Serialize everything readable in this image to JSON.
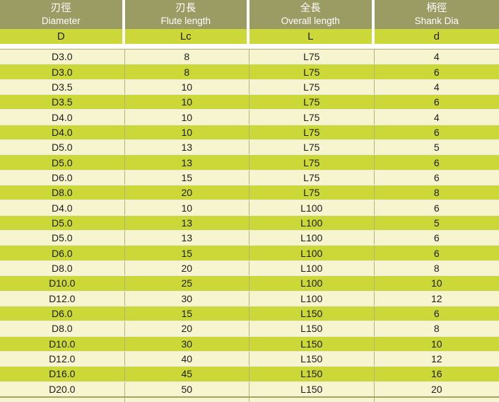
{
  "table": {
    "columns": [
      {
        "zh": "刃徑",
        "en": "Diameter",
        "symbol": "D"
      },
      {
        "zh": "刃長",
        "en": "Flute length",
        "symbol": "Lc"
      },
      {
        "zh": "全長",
        "en": "Overall length",
        "symbol": "L"
      },
      {
        "zh": "柄徑",
        "en": "Shank Dia",
        "symbol": "d"
      }
    ],
    "rows": [
      [
        "D3.0",
        "8",
        "L75",
        "4"
      ],
      [
        "D3.0",
        "8",
        "L75",
        "6"
      ],
      [
        "D3.5",
        "10",
        "L75",
        "4"
      ],
      [
        "D3.5",
        "10",
        "L75",
        "6"
      ],
      [
        "D4.0",
        "10",
        "L75",
        "4"
      ],
      [
        "D4.0",
        "10",
        "L75",
        "6"
      ],
      [
        "D5.0",
        "13",
        "L75",
        "5"
      ],
      [
        "D5.0",
        "13",
        "L75",
        "6"
      ],
      [
        "D6.0",
        "15",
        "L75",
        "6"
      ],
      [
        "D8.0",
        "20",
        "L75",
        "8"
      ],
      [
        "D4.0",
        "10",
        "L100",
        "6"
      ],
      [
        "D5.0",
        "13",
        "L100",
        "5"
      ],
      [
        "D5.0",
        "13",
        "L100",
        "6"
      ],
      [
        "D6.0",
        "15",
        "L100",
        "6"
      ],
      [
        "D8.0",
        "20",
        "L100",
        "8"
      ],
      [
        "D10.0",
        "25",
        "L100",
        "10"
      ],
      [
        "D12.0",
        "30",
        "L100",
        "12"
      ],
      [
        "D6.0",
        "15",
        "L150",
        "6"
      ],
      [
        "D8.0",
        "20",
        "L150",
        "8"
      ],
      [
        "D10.0",
        "30",
        "L150",
        "10"
      ],
      [
        "D12.0",
        "40",
        "L150",
        "12"
      ],
      [
        "D16.0",
        "45",
        "L150",
        "16"
      ],
      [
        "D20.0",
        "50",
        "L150",
        "20"
      ]
    ]
  },
  "colors": {
    "header_olive": "#9b9b64",
    "header_green": "#cbd838",
    "row_pale": "#f7f5cf",
    "row_green": "#cbd838",
    "divider": "#b3b379",
    "header_text": "#ffffff",
    "body_text": "#1c1c1c"
  }
}
